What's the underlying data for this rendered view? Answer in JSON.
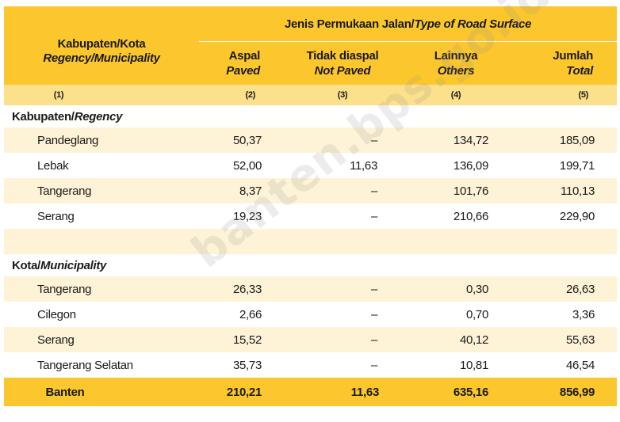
{
  "header": {
    "region_label": "Kabupaten/Kota",
    "region_label_en": "Regency/Municipality",
    "group_label": "Jenis Permukaan Jalan/",
    "group_label_en": "Type of Road Surface",
    "columns": [
      {
        "id": "aspal",
        "label": "Aspal",
        "label_en": "Paved"
      },
      {
        "id": "tidak",
        "label": "Tidak diaspal",
        "label_en": "Not Paved"
      },
      {
        "id": "lain",
        "label": "Lainnya",
        "label_en": "Others"
      },
      {
        "id": "jumlah",
        "label": "Jumlah",
        "label_en": "Total"
      }
    ],
    "numbers": [
      "(1)",
      "(2)",
      "(3)",
      "(4)",
      "(5)"
    ]
  },
  "sections": [
    {
      "label": "Kabupaten/",
      "label_en": "Regency",
      "rows": [
        {
          "name": "Pandeglang",
          "aspal": "50,37",
          "tidak": "–",
          "lain": "134,72",
          "jumlah": "185,09"
        },
        {
          "name": "Lebak",
          "aspal": "52,00",
          "tidak": "11,63",
          "lain": "136,09",
          "jumlah": "199,71"
        },
        {
          "name": "Tangerang",
          "aspal": "8,37",
          "tidak": "–",
          "lain": "101,76",
          "jumlah": "110,13"
        },
        {
          "name": "Serang",
          "aspal": "19,23",
          "tidak": "–",
          "lain": "210,66",
          "jumlah": "229,90"
        }
      ]
    },
    {
      "label": "Kota/",
      "label_en": "Municipality",
      "rows": [
        {
          "name": "Tangerang",
          "aspal": "26,33",
          "tidak": "–",
          "lain": "0,30",
          "jumlah": "26,63"
        },
        {
          "name": "Cilegon",
          "aspal": "2,66",
          "tidak": "–",
          "lain": "0,70",
          "jumlah": "3,36"
        },
        {
          "name": "Serang",
          "aspal": "15,52",
          "tidak": "–",
          "lain": "40,12",
          "jumlah": "55,63"
        },
        {
          "name": "Tangerang Selatan",
          "aspal": "35,73",
          "tidak": "–",
          "lain": "10,81",
          "jumlah": "46,54"
        }
      ]
    }
  ],
  "total": {
    "name": "Banten",
    "aspal": "210,21",
    "tidak": "11,63",
    "lain": "635,16",
    "jumlah": "856,99"
  },
  "watermark": "banten.bps.go.id",
  "colors": {
    "header": "#fcc72c",
    "number_row": "#fde08c",
    "stripe": "#fef3d6"
  }
}
